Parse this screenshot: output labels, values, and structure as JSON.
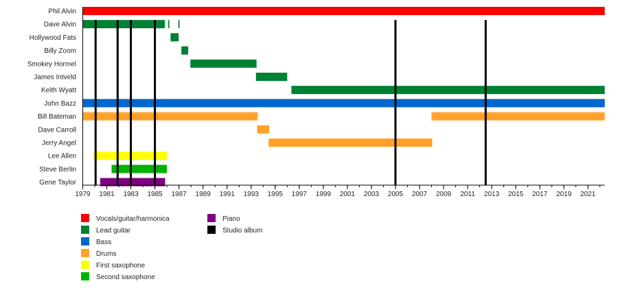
{
  "chart_data": {
    "type": "timeline",
    "xlim": [
      1979,
      2022.4
    ],
    "x_ticks": [
      1979,
      1981,
      1983,
      1985,
      1987,
      1989,
      1991,
      1993,
      1995,
      1997,
      1999,
      2001,
      2003,
      2005,
      2007,
      2009,
      2011,
      2013,
      2015,
      2017,
      2019,
      2021
    ],
    "x_minor_tick_step": 1,
    "roles": {
      "vocals": {
        "label": "Vocals/guitar/harmonica",
        "color": "#ff0000"
      },
      "lead": {
        "label": "Lead guitar",
        "color": "#008033"
      },
      "bass": {
        "label": "Bass",
        "color": "#0066cc"
      },
      "drums": {
        "label": "Drums",
        "color": "#ffa02a"
      },
      "sax1": {
        "label": "First saxophone",
        "color": "#ffff00"
      },
      "sax2": {
        "label": "Second saxophone",
        "color": "#00b300"
      },
      "piano": {
        "label": "Piano",
        "color": "#800080"
      },
      "album": {
        "label": "Studio album",
        "color": "#000000"
      }
    },
    "legend_order": [
      "vocals",
      "lead",
      "bass",
      "drums",
      "sax1",
      "sax2",
      "piano",
      "album"
    ],
    "members": [
      {
        "name": "Phil Alvin",
        "spans": [
          {
            "role": "vocals",
            "from": 1979,
            "to": 2022.4
          }
        ]
      },
      {
        "name": "Dave Alvin",
        "spans": [
          {
            "role": "lead",
            "from": 1979,
            "to": 1985.83
          },
          {
            "role": "lead",
            "from": 1986.1,
            "to": 1986.2
          },
          {
            "role": "lead",
            "from": 1986.95,
            "to": 1987.05
          }
        ]
      },
      {
        "name": "Hollywood Fats",
        "spans": [
          {
            "role": "lead",
            "from": 1986.3,
            "to": 1986.97
          }
        ]
      },
      {
        "name": "Billy Zoom",
        "spans": [
          {
            "role": "lead",
            "from": 1987.2,
            "to": 1987.77
          }
        ]
      },
      {
        "name": "Smokey Hormel",
        "spans": [
          {
            "role": "lead",
            "from": 1987.95,
            "to": 1993.45
          }
        ]
      },
      {
        "name": "James Intveld",
        "spans": [
          {
            "role": "lead",
            "from": 1993.4,
            "to": 1996.0
          }
        ]
      },
      {
        "name": "Keith Wyatt",
        "spans": [
          {
            "role": "lead",
            "from": 1996.35,
            "to": 2022.4
          }
        ]
      },
      {
        "name": "John Bazz",
        "spans": [
          {
            "role": "bass",
            "from": 1979,
            "to": 2022.4
          }
        ]
      },
      {
        "name": "Bill Bateman",
        "spans": [
          {
            "role": "drums",
            "from": 1979,
            "to": 1993.55
          },
          {
            "role": "drums",
            "from": 2008.0,
            "to": 2022.4
          }
        ]
      },
      {
        "name": "Dave Carroll",
        "spans": [
          {
            "role": "drums",
            "from": 1993.5,
            "to": 1994.5
          }
        ]
      },
      {
        "name": "Jerry Angel",
        "spans": [
          {
            "role": "drums",
            "from": 1994.45,
            "to": 2008.05
          }
        ]
      },
      {
        "name": "Lee Allen",
        "spans": [
          {
            "role": "sax1",
            "from": 1979.9,
            "to": 1986.0
          }
        ]
      },
      {
        "name": "Steve Berlin",
        "spans": [
          {
            "role": "sax2",
            "from": 1981.4,
            "to": 1986.0
          }
        ]
      },
      {
        "name": "Gene Taylor",
        "spans": [
          {
            "role": "piano",
            "from": 1980.45,
            "to": 1985.85
          }
        ]
      }
    ],
    "studio_albums": [
      1980.07,
      1981.9,
      1983.0,
      1985.0,
      2005.0,
      2012.5
    ]
  }
}
